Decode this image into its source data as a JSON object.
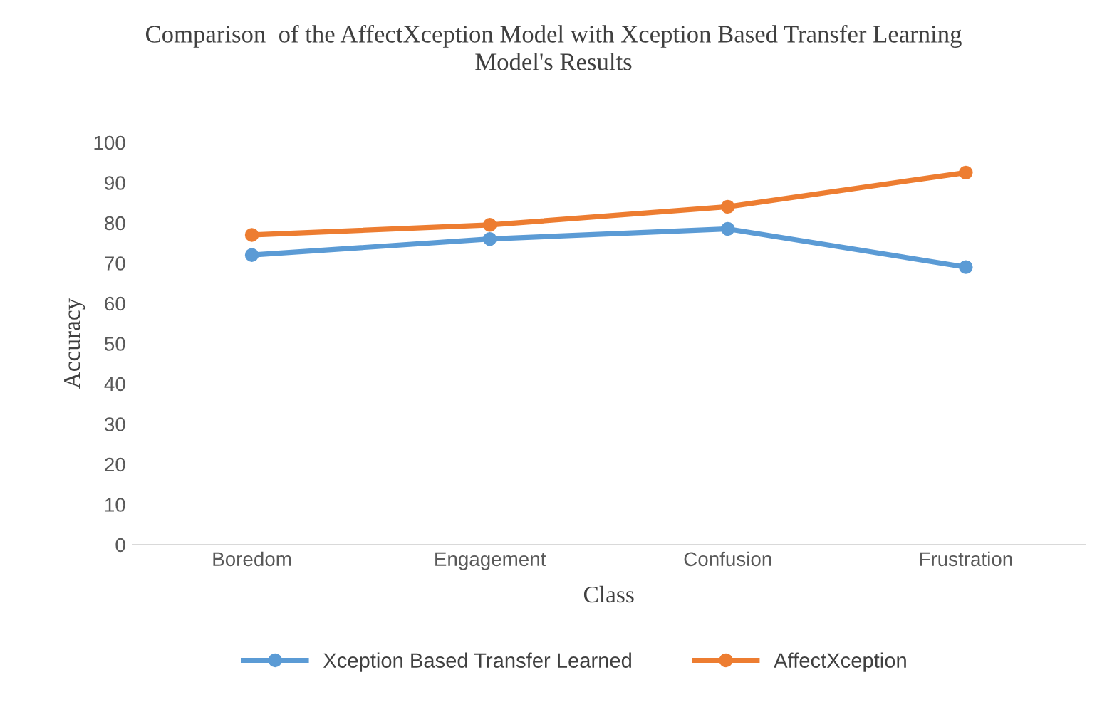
{
  "chart_data": {
    "type": "line",
    "title": "Comparison  of the AffectXception Model with Xception Based Transfer Learning\nModel's Results",
    "xlabel": "Class",
    "ylabel": "Accuracy",
    "categories": [
      "Boredom",
      "Engagement",
      "Confusion",
      "Frustration"
    ],
    "series": [
      {
        "name": "Xception Based Transfer Learned",
        "color": "#5b9bd5",
        "values": [
          72,
          76,
          78.5,
          69
        ]
      },
      {
        "name": "AffectXception",
        "color": "#ed7d31",
        "values": [
          77,
          79.5,
          84,
          92.5
        ]
      }
    ],
    "ylim": [
      0,
      100
    ],
    "yticks": [
      0,
      10,
      20,
      30,
      40,
      50,
      60,
      70,
      80,
      90,
      100
    ],
    "grid": false,
    "legend": "bottom",
    "marker": "circle",
    "line_style": "solid"
  }
}
